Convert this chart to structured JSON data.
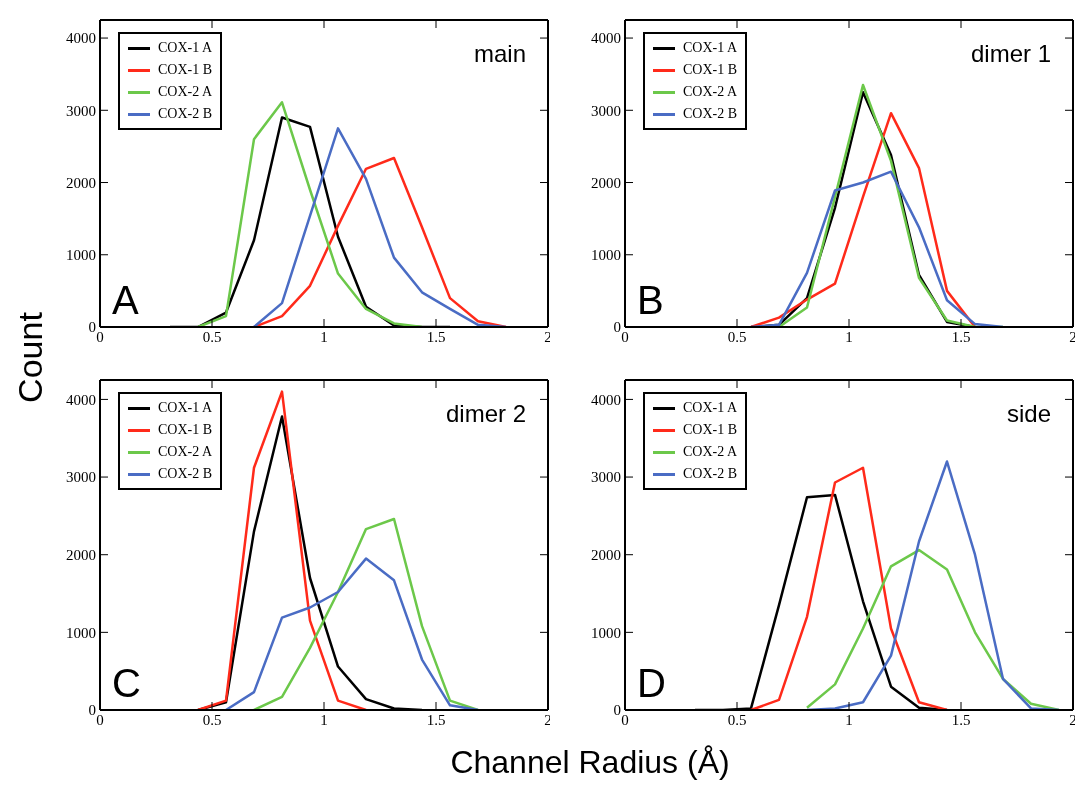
{
  "chart_data": [
    {
      "type": "line",
      "ylabel": "Count",
      "annotations": [
        "A",
        "main"
      ],
      "legend": "top left",
      "xlim": [
        0,
        2
      ],
      "xticks": [
        0,
        0.5,
        1,
        1.5,
        2
      ],
      "ylim": [
        0,
        4250
      ],
      "yticks": [
        0,
        1000,
        2000,
        3000,
        4000
      ],
      "x": [
        0.3125,
        0.4375,
        0.5625,
        0.6875,
        0.8125,
        0.9375,
        1.0625,
        1.1875,
        1.3125,
        1.4375,
        1.5625,
        1.6875,
        1.8125
      ],
      "series": [
        {
          "name": "COX-1 A",
          "color": "#000000",
          "values": [
            0,
            0,
            200,
            1200,
            2900,
            2770,
            1250,
            280,
            20,
            0,
            0,
            null,
            null
          ]
        },
        {
          "name": "COX-1 B",
          "color": "#ff2a1a",
          "values": [
            null,
            null,
            null,
            0,
            150,
            570,
            1400,
            2190,
            2340,
            1380,
            400,
            80,
            0
          ]
        },
        {
          "name": "COX-2 A",
          "color": "#6cc84a",
          "values": [
            null,
            0,
            150,
            2600,
            3110,
            1900,
            740,
            250,
            50,
            0,
            null,
            null,
            null
          ]
        },
        {
          "name": "COX-2 B",
          "color": "#4a6cc4",
          "values": [
            null,
            null,
            null,
            0,
            330,
            1540,
            2750,
            2050,
            960,
            480,
            250,
            30,
            0
          ]
        }
      ]
    },
    {
      "type": "line",
      "annotations": [
        "B",
        "dimer 1"
      ],
      "legend": "top left",
      "xlim": [
        0,
        2
      ],
      "xticks": [
        0,
        0.5,
        1,
        1.5,
        2
      ],
      "ylim": [
        0,
        4250
      ],
      "yticks": [
        0,
        1000,
        2000,
        3000,
        4000
      ],
      "x": [
        0.5625,
        0.6875,
        0.8125,
        0.9375,
        1.0625,
        1.1875,
        1.3125,
        1.4375,
        1.5625,
        1.6875
      ],
      "series": [
        {
          "name": "COX-1 A",
          "color": "#000000",
          "values": [
            0,
            30,
            400,
            1650,
            3250,
            2380,
            720,
            70,
            0,
            null
          ]
        },
        {
          "name": "COX-1 B",
          "color": "#ff2a1a",
          "values": [
            0,
            130,
            380,
            600,
            1800,
            2960,
            2200,
            500,
            0,
            null
          ]
        },
        {
          "name": "COX-2 A",
          "color": "#6cc84a",
          "values": [
            null,
            0,
            270,
            1800,
            3350,
            2300,
            680,
            90,
            0,
            0
          ]
        },
        {
          "name": "COX-2 B",
          "color": "#4a6cc4",
          "values": [
            0,
            30,
            750,
            1890,
            2000,
            2150,
            1380,
            370,
            40,
            0
          ]
        }
      ]
    },
    {
      "type": "line",
      "xlabel": "Channel Radius (Å)",
      "annotations": [
        "C",
        "dimer 2"
      ],
      "legend": "top left",
      "xlim": [
        0,
        2
      ],
      "xticks": [
        0,
        0.5,
        1,
        1.5,
        2
      ],
      "ylim": [
        0,
        4250
      ],
      "yticks": [
        0,
        1000,
        2000,
        3000,
        4000
      ],
      "x": [
        0.4375,
        0.5625,
        0.6875,
        0.8125,
        0.9375,
        1.0625,
        1.1875,
        1.3125,
        1.4375,
        1.5625,
        1.6875
      ],
      "series": [
        {
          "name": "COX-1 A",
          "color": "#000000",
          "values": [
            0,
            100,
            2300,
            3780,
            1700,
            560,
            140,
            20,
            0,
            null,
            null
          ]
        },
        {
          "name": "COX-1 B",
          "color": "#ff2a1a",
          "values": [
            0,
            120,
            3120,
            4100,
            1150,
            120,
            0,
            null,
            null,
            null,
            null
          ]
        },
        {
          "name": "COX-2 A",
          "color": "#6cc84a",
          "values": [
            null,
            null,
            0,
            170,
            800,
            1520,
            2330,
            2460,
            1080,
            120,
            0
          ]
        },
        {
          "name": "COX-2 B",
          "color": "#4a6cc4",
          "values": [
            null,
            0,
            230,
            1190,
            1320,
            1520,
            1950,
            1670,
            650,
            60,
            0
          ]
        }
      ]
    },
    {
      "type": "line",
      "annotations": [
        "D",
        "side"
      ],
      "legend": "top left",
      "xlim": [
        0,
        2
      ],
      "xticks": [
        0,
        0.5,
        1,
        1.5,
        2
      ],
      "ylim": [
        0,
        4250
      ],
      "yticks": [
        0,
        1000,
        2000,
        3000,
        4000
      ],
      "x": [
        0.3125,
        0.4375,
        0.5625,
        0.6875,
        0.8125,
        0.9375,
        1.0625,
        1.1875,
        1.3125,
        1.4375,
        1.5625,
        1.6875,
        1.8125,
        1.9375
      ],
      "series": [
        {
          "name": "COX-1 A",
          "color": "#000000",
          "values": [
            0,
            0,
            20,
            1350,
            2740,
            2770,
            1400,
            300,
            30,
            0,
            null,
            null,
            null,
            null
          ]
        },
        {
          "name": "COX-1 B",
          "color": "#ff2a1a",
          "values": [
            null,
            null,
            0,
            130,
            1200,
            2930,
            3120,
            1050,
            100,
            0,
            null,
            null,
            null,
            null
          ]
        },
        {
          "name": "COX-2 A",
          "color": "#6cc84a",
          "values": [
            null,
            null,
            null,
            null,
            30,
            330,
            1050,
            1850,
            2060,
            1810,
            1000,
            400,
            80,
            0
          ]
        },
        {
          "name": "COX-2 B",
          "color": "#4a6cc4",
          "values": [
            null,
            null,
            null,
            null,
            0,
            20,
            100,
            700,
            2170,
            3200,
            2000,
            400,
            20,
            0
          ]
        }
      ]
    }
  ]
}
